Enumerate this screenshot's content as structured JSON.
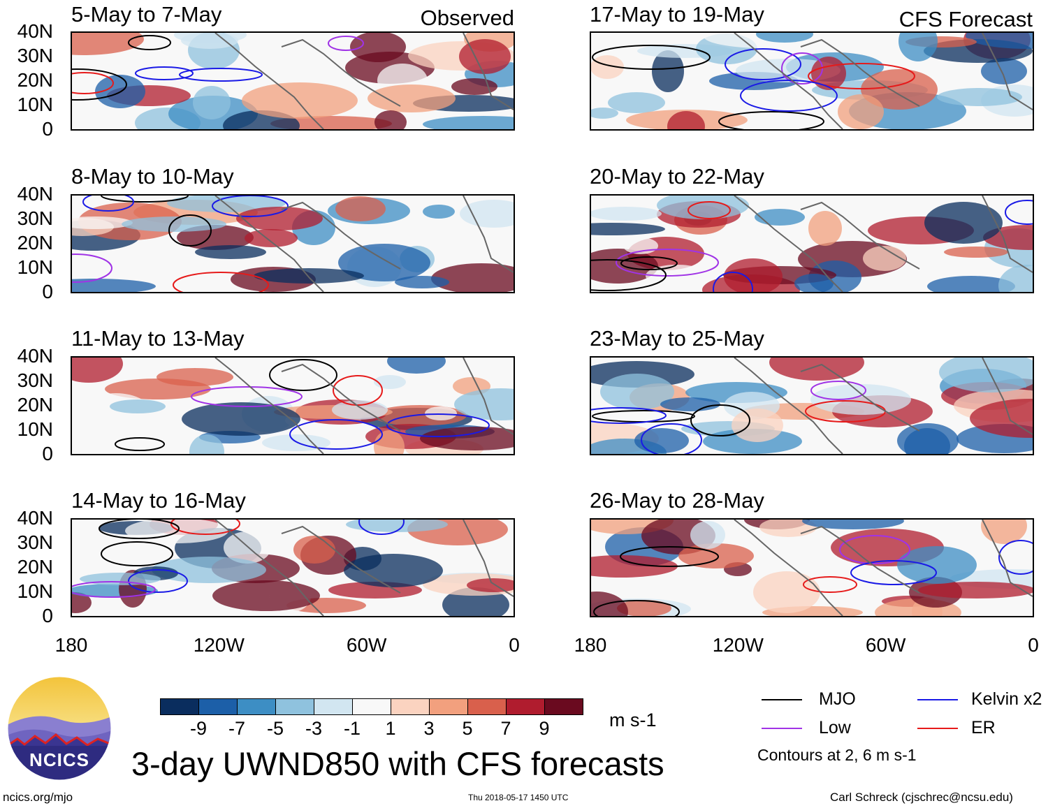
{
  "panels_left": [
    {
      "title": "5-May to 7-May",
      "label": "Observed"
    },
    {
      "title": "8-May to 10-May",
      "label": ""
    },
    {
      "title": "11-May to 13-May",
      "label": ""
    },
    {
      "title": "14-May to 16-May",
      "label": ""
    }
  ],
  "panels_right": [
    {
      "title": "17-May to 19-May",
      "label": "CFS Forecast"
    },
    {
      "title": "20-May to 22-May",
      "label": ""
    },
    {
      "title": "23-May to 25-May",
      "label": ""
    },
    {
      "title": "26-May to 28-May",
      "label": ""
    }
  ],
  "lat_labels": [
    "40N",
    "30N",
    "20N",
    "10N",
    "0"
  ],
  "lon_labels": [
    "180",
    "120W",
    "60W",
    "0"
  ],
  "colorbar": {
    "ticks": [
      "-9",
      "-7",
      "-5",
      "-3",
      "-1",
      "1",
      "3",
      "5",
      "7",
      "9"
    ],
    "units": "m s-1",
    "colors": [
      "#0a2d5e",
      "#1c5fa8",
      "#3d8ec4",
      "#8fc2de",
      "#d2e6f1",
      "#f8f8f8",
      "#fbd3c0",
      "#f2a07e",
      "#d9604c",
      "#b01c2e",
      "#6a0a1f"
    ]
  },
  "title": "3-day UWND850 with CFS forecasts",
  "logo_text": "NCICS",
  "legend": {
    "items": [
      {
        "label": "MJO",
        "color": "#000000"
      },
      {
        "label": "Kelvin x2",
        "color": "#1a1ae6"
      },
      {
        "label": "Low",
        "color": "#a033e6"
      },
      {
        "label": "ER",
        "color": "#e61a1a"
      }
    ],
    "contours_note": "Contours at 2, 6 m s-1"
  },
  "footer": {
    "url": "ncics.org/mjo",
    "timestamp": "Thu 2018-05-17 1450 UTC",
    "author": "Carl Schreck (cjschrec@ncsu.edu)"
  }
}
